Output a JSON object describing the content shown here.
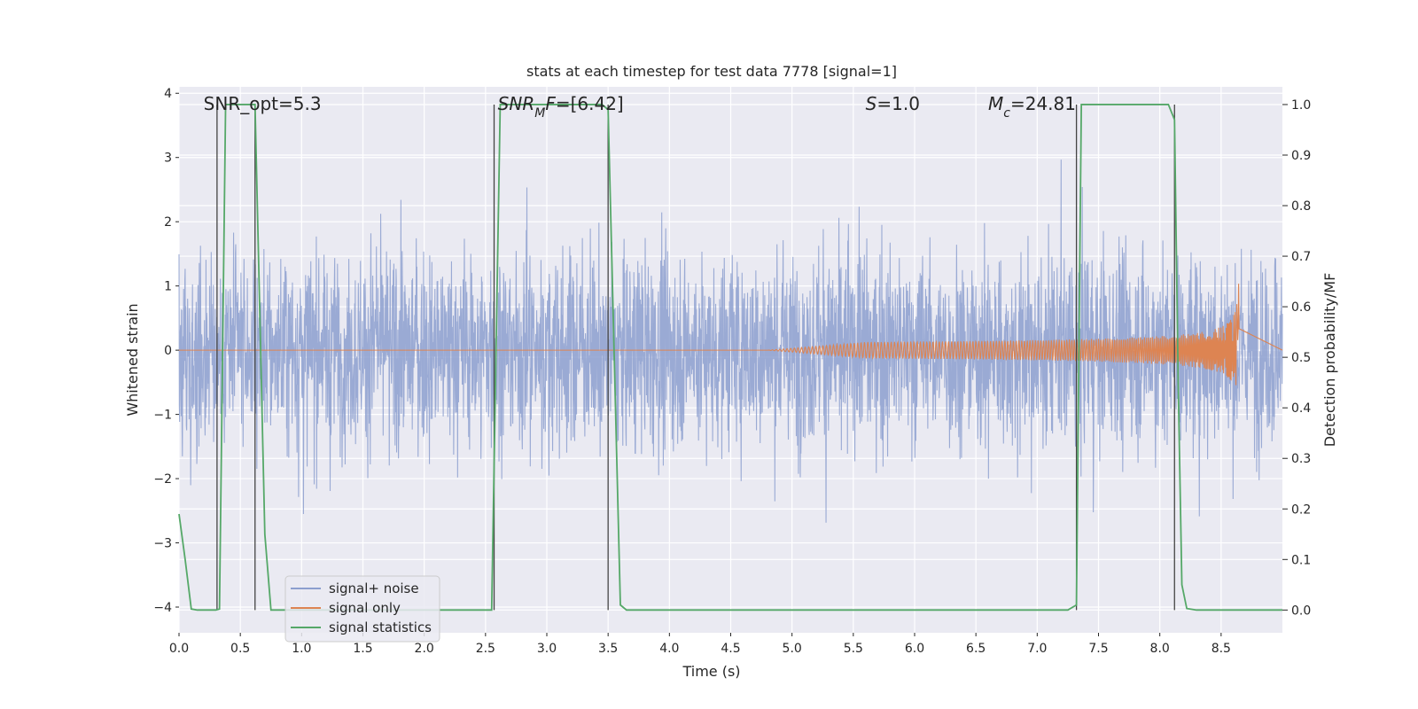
{
  "chart_data": {
    "type": "line",
    "title": "stats at each timestep for test data 7778 [signal=1]",
    "xlabel": "Time (s)",
    "ylabel_left": "Whitened strain",
    "ylabel_right": "Detection probability/MF",
    "xlim": [
      0.0,
      9.0
    ],
    "ylim_left": [
      -4.4,
      4.1
    ],
    "ylim_right": [
      -0.045,
      1.035
    ],
    "x_ticks": [
      {
        "v": 0.0,
        "label": "0.0"
      },
      {
        "v": 0.5,
        "label": "0.5"
      },
      {
        "v": 1.0,
        "label": "1.0"
      },
      {
        "v": 1.5,
        "label": "1.5"
      },
      {
        "v": 2.0,
        "label": "2.0"
      },
      {
        "v": 2.5,
        "label": "2.5"
      },
      {
        "v": 3.0,
        "label": "3.0"
      },
      {
        "v": 3.5,
        "label": "3.5"
      },
      {
        "v": 4.0,
        "label": "4.0"
      },
      {
        "v": 4.5,
        "label": "4.5"
      },
      {
        "v": 5.0,
        "label": "5.0"
      },
      {
        "v": 5.5,
        "label": "5.5"
      },
      {
        "v": 6.0,
        "label": "6.0"
      },
      {
        "v": 6.5,
        "label": "6.5"
      },
      {
        "v": 7.0,
        "label": "7.0"
      },
      {
        "v": 7.5,
        "label": "7.5"
      },
      {
        "v": 8.0,
        "label": "8.0"
      },
      {
        "v": 8.5,
        "label": "8.5"
      }
    ],
    "y_ticks_left": [
      {
        "v": 4,
        "label": "4"
      },
      {
        "v": 3,
        "label": "3"
      },
      {
        "v": 2,
        "label": "2"
      },
      {
        "v": 1,
        "label": "1"
      },
      {
        "v": 0,
        "label": "0"
      },
      {
        "v": -1,
        "label": "−1"
      },
      {
        "v": -2,
        "label": "−2"
      },
      {
        "v": -3,
        "label": "−3"
      },
      {
        "v": -4,
        "label": "−4"
      }
    ],
    "y_ticks_right": [
      {
        "v": 1.0,
        "label": "1.0"
      },
      {
        "v": 0.9,
        "label": "0.9"
      },
      {
        "v": 0.8,
        "label": "0.8"
      },
      {
        "v": 0.7,
        "label": "0.7"
      },
      {
        "v": 0.6,
        "label": "0.6"
      },
      {
        "v": 0.5,
        "label": "0.5"
      },
      {
        "v": 0.4,
        "label": "0.4"
      },
      {
        "v": 0.3,
        "label": "0.3"
      },
      {
        "v": 0.2,
        "label": "0.2"
      },
      {
        "v": 0.1,
        "label": "0.1"
      },
      {
        "v": 0.0,
        "label": "0.0"
      }
    ],
    "grid": true,
    "legend_position": "lower-left",
    "series": [
      {
        "name": "signal+ noise",
        "axis": "left",
        "color": "#8c9fcf",
        "kind": "noise",
        "description_values": {
          "typical_range": [
            -2.7,
            2.7
          ],
          "max": 3.8,
          "min": -4.05
        }
      },
      {
        "name": "signal only",
        "axis": "left",
        "color": "#dd8452",
        "kind": "chirp",
        "chirp": {
          "t_start": 4.8,
          "t_merge": 8.65,
          "peak_amplitude": 1.3
        }
      },
      {
        "name": "signal statistics",
        "axis": "right",
        "color": "#55a868",
        "kind": "line",
        "x": [
          0.0,
          0.05,
          0.1,
          0.15,
          0.3,
          0.33,
          0.38,
          0.45,
          0.6,
          0.62,
          0.7,
          0.75,
          1.0,
          1.5,
          2.0,
          2.5,
          2.55,
          2.62,
          3.0,
          3.45,
          3.5,
          3.55,
          3.6,
          3.65,
          4.0,
          5.0,
          6.0,
          7.0,
          7.25,
          7.32,
          7.36,
          7.4,
          7.6,
          8.0,
          8.07,
          8.12,
          8.15,
          8.18,
          8.22,
          8.3,
          8.5,
          8.7,
          8.9,
          9.0
        ],
        "y": [
          0.19,
          0.1,
          0.002,
          0.0,
          0.0,
          0.002,
          1.0,
          1.0,
          1.0,
          1.0,
          0.15,
          0.0,
          0.0,
          0.0,
          0.0,
          0.0,
          0.0,
          1.0,
          1.0,
          1.0,
          0.99,
          0.5,
          0.01,
          0.0,
          0.0,
          0.0,
          0.0,
          0.0,
          0.0,
          0.01,
          1.0,
          1.0,
          1.0,
          1.0,
          1.0,
          0.97,
          0.45,
          0.05,
          0.003,
          0.0,
          0.0,
          0.0,
          0.0,
          0.0
        ]
      }
    ],
    "vertical_markers": [
      0.31,
      0.62,
      2.57,
      3.5,
      7.32,
      8.12
    ],
    "annotations": [
      {
        "text": "SNR_opt=5.3",
        "x": 0.2,
        "style": "plain",
        "parts": [
          {
            "t": "SNR_opt=5.3",
            "sub": false,
            "italic": false
          }
        ]
      },
      {
        "text": "SNR_MF=[6.42]",
        "x": 2.6,
        "style": "math",
        "parts": [
          {
            "t": "SNR",
            "sub": false,
            "italic": true
          },
          {
            "t": "M",
            "sub": true,
            "italic": true
          },
          {
            "t": "F",
            "sub": false,
            "italic": true
          },
          {
            "t": "=[6.42]",
            "sub": false,
            "italic": false
          }
        ]
      },
      {
        "text": "S=1.0",
        "x": 5.6,
        "style": "math",
        "parts": [
          {
            "t": "S",
            "sub": false,
            "italic": true
          },
          {
            "t": "=1.0",
            "sub": false,
            "italic": false
          }
        ]
      },
      {
        "text": "M_c=24.81",
        "x": 6.6,
        "style": "math",
        "parts": [
          {
            "t": "M",
            "sub": false,
            "italic": true
          },
          {
            "t": "c",
            "sub": true,
            "italic": true
          },
          {
            "t": "=24.81",
            "sub": false,
            "italic": false
          }
        ]
      }
    ]
  },
  "colors": {
    "axes_bg": "#eaeaf2",
    "grid": "#ffffff",
    "marker": "#444444",
    "text": "#262626"
  }
}
